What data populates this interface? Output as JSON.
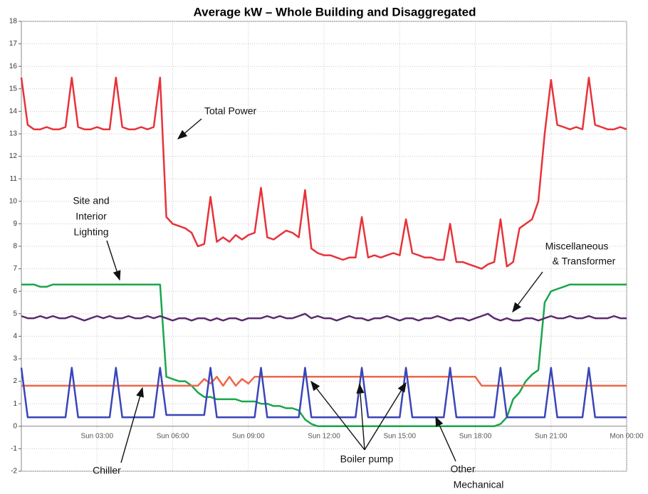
{
  "chart_data": {
    "type": "line",
    "title": "Average kW – Whole Building and Disaggregated",
    "x": [
      0,
      0.25,
      0.5,
      0.75,
      1,
      1.25,
      1.5,
      1.75,
      2,
      2.25,
      2.5,
      2.75,
      3,
      3.25,
      3.5,
      3.75,
      4,
      4.25,
      4.5,
      4.75,
      5,
      5.25,
      5.5,
      5.75,
      6,
      6.25,
      6.5,
      6.75,
      7,
      7.25,
      7.5,
      7.75,
      8,
      8.25,
      8.5,
      8.75,
      9,
      9.25,
      9.5,
      9.75,
      10,
      10.25,
      10.5,
      10.75,
      11,
      11.25,
      11.5,
      11.75,
      12,
      12.25,
      12.5,
      12.75,
      13,
      13.25,
      13.5,
      13.75,
      14,
      14.25,
      14.5,
      14.75,
      15,
      15.25,
      15.5,
      15.75,
      16,
      16.25,
      16.5,
      16.75,
      17,
      17.25,
      17.5,
      17.75,
      18,
      18.25,
      18.5,
      18.75,
      19,
      19.25,
      19.5,
      19.75,
      20,
      20.25,
      20.5,
      20.75,
      21,
      21.25,
      21.5,
      21.75,
      22,
      22.25,
      22.5,
      22.75,
      23,
      23.25,
      23.5,
      23.75,
      24
    ],
    "xlim": [
      0,
      24
    ],
    "xticks": [
      {
        "value": 3,
        "label": "Sun 03:00"
      },
      {
        "value": 6,
        "label": "Sun 06:00"
      },
      {
        "value": 9,
        "label": "Sun 09:00"
      },
      {
        "value": 12,
        "label": "Sun 12:00"
      },
      {
        "value": 15,
        "label": "Sun 15:00"
      },
      {
        "value": 18,
        "label": "Sun 18:00"
      },
      {
        "value": 21,
        "label": "Sun 21:00"
      },
      {
        "value": 24,
        "label": "Mon 00:00"
      }
    ],
    "ylim": [
      -2,
      18
    ],
    "yticks": [
      -2,
      -1,
      0,
      1,
      2,
      3,
      4,
      5,
      6,
      7,
      8,
      9,
      10,
      11,
      12,
      13,
      14,
      15,
      16,
      17,
      18
    ],
    "grid": true,
    "series": [
      {
        "name": "Total Power",
        "color": "#e8323a",
        "values": [
          15.5,
          13.4,
          13.2,
          13.2,
          13.3,
          13.2,
          13.2,
          13.3,
          15.5,
          13.3,
          13.2,
          13.2,
          13.3,
          13.2,
          13.2,
          15.5,
          13.3,
          13.2,
          13.2,
          13.3,
          13.2,
          13.3,
          15.5,
          9.3,
          9.0,
          8.9,
          8.8,
          8.6,
          8.0,
          8.1,
          10.2,
          8.2,
          8.4,
          8.2,
          8.5,
          8.3,
          8.5,
          8.6,
          10.6,
          8.4,
          8.3,
          8.5,
          8.7,
          8.6,
          8.4,
          10.5,
          7.9,
          7.7,
          7.6,
          7.6,
          7.5,
          7.4,
          7.5,
          7.5,
          9.3,
          7.5,
          7.6,
          7.5,
          7.6,
          7.7,
          7.6,
          9.2,
          7.7,
          7.6,
          7.5,
          7.5,
          7.4,
          7.4,
          9.0,
          7.3,
          7.3,
          7.2,
          7.1,
          7.0,
          7.2,
          7.3,
          9.2,
          7.1,
          7.3,
          8.8,
          9.0,
          9.2,
          10.0,
          13.0,
          15.4,
          13.4,
          13.3,
          13.2,
          13.3,
          13.2,
          15.5,
          13.4,
          13.3,
          13.2,
          13.2,
          13.3,
          13.2
        ]
      },
      {
        "name": "Site and Interior Lighting",
        "color": "#1aa64a",
        "values": [
          6.3,
          6.3,
          6.3,
          6.2,
          6.2,
          6.3,
          6.3,
          6.3,
          6.3,
          6.3,
          6.3,
          6.3,
          6.3,
          6.3,
          6.3,
          6.3,
          6.3,
          6.3,
          6.3,
          6.3,
          6.3,
          6.3,
          6.3,
          2.2,
          2.1,
          2.0,
          2.0,
          1.8,
          1.5,
          1.3,
          1.3,
          1.2,
          1.2,
          1.2,
          1.2,
          1.1,
          1.1,
          1.1,
          1.0,
          1.0,
          0.9,
          0.9,
          0.8,
          0.8,
          0.7,
          0.3,
          0.1,
          0,
          0,
          0,
          0,
          0,
          0,
          0,
          0,
          0,
          0,
          0,
          0,
          0,
          0,
          0,
          0,
          0,
          0,
          0,
          0,
          0,
          0,
          0,
          0,
          0,
          0,
          0,
          0,
          0,
          0.1,
          0.4,
          1.2,
          1.5,
          2.0,
          2.3,
          2.5,
          5.5,
          6.0,
          6.1,
          6.2,
          6.3,
          6.3,
          6.3,
          6.3,
          6.3,
          6.3,
          6.3,
          6.3,
          6.3,
          6.3
        ]
      },
      {
        "name": "Miscellaneous & Transformer",
        "color": "#5b2a6e",
        "values": [
          4.9,
          4.8,
          4.8,
          4.9,
          4.8,
          4.9,
          4.8,
          4.8,
          4.9,
          4.8,
          4.7,
          4.8,
          4.9,
          4.8,
          4.9,
          4.8,
          4.8,
          4.9,
          4.8,
          4.8,
          4.9,
          4.8,
          4.9,
          4.8,
          4.7,
          4.8,
          4.8,
          4.7,
          4.8,
          4.8,
          4.7,
          4.8,
          4.7,
          4.8,
          4.8,
          4.7,
          4.8,
          4.8,
          4.8,
          4.9,
          4.8,
          4.9,
          4.8,
          4.8,
          4.9,
          5.0,
          4.8,
          4.9,
          4.8,
          4.8,
          4.7,
          4.8,
          4.9,
          4.8,
          4.8,
          4.7,
          4.8,
          4.8,
          4.9,
          4.8,
          4.7,
          4.8,
          4.8,
          4.7,
          4.8,
          4.8,
          4.9,
          4.8,
          4.7,
          4.8,
          4.8,
          4.7,
          4.8,
          4.9,
          5.0,
          4.8,
          4.7,
          4.8,
          4.7,
          4.7,
          4.8,
          4.8,
          4.7,
          4.8,
          4.9,
          4.8,
          4.8,
          4.9,
          4.8,
          4.8,
          4.9,
          4.8,
          4.8,
          4.8,
          4.9,
          4.8,
          4.8
        ]
      },
      {
        "name": "Chiller",
        "color": "#f0654a",
        "values": [
          1.8,
          1.8,
          1.8,
          1.8,
          1.8,
          1.8,
          1.8,
          1.8,
          1.8,
          1.8,
          1.8,
          1.8,
          1.8,
          1.8,
          1.8,
          1.8,
          1.8,
          1.8,
          1.8,
          1.8,
          1.8,
          1.8,
          1.8,
          1.8,
          1.8,
          1.8,
          1.8,
          1.8,
          1.8,
          2.1,
          1.9,
          2.2,
          1.8,
          2.2,
          1.8,
          2.1,
          1.9,
          2.2,
          2.2,
          2.2,
          2.2,
          2.2,
          2.2,
          2.2,
          2.2,
          2.2,
          2.2,
          2.2,
          2.2,
          2.2,
          2.2,
          2.2,
          2.2,
          2.2,
          2.2,
          2.2,
          2.2,
          2.2,
          2.2,
          2.2,
          2.2,
          2.2,
          2.2,
          2.2,
          2.2,
          2.2,
          2.2,
          2.2,
          2.2,
          2.2,
          2.2,
          2.2,
          2.2,
          1.8,
          1.8,
          1.8,
          1.8,
          1.8,
          1.8,
          1.8,
          1.8,
          1.8,
          1.8,
          1.8,
          1.8,
          1.8,
          1.8,
          1.8,
          1.8,
          1.8,
          1.8,
          1.8,
          1.8,
          1.8,
          1.8,
          1.8,
          1.8
        ]
      },
      {
        "name": "Other Mechanical",
        "color": "#3a45b8",
        "values": [
          2.6,
          0.4,
          0.4,
          0.4,
          0.4,
          0.4,
          0.4,
          0.4,
          2.6,
          0.4,
          0.4,
          0.4,
          0.4,
          0.4,
          0.4,
          2.6,
          0.4,
          0.4,
          0.4,
          0.4,
          0.4,
          0.4,
          2.6,
          0.5,
          0.5,
          0.5,
          0.5,
          0.5,
          0.5,
          0.5,
          2.6,
          0.4,
          0.4,
          0.4,
          0.4,
          0.4,
          0.4,
          0.4,
          2.6,
          0.4,
          0.4,
          0.4,
          0.4,
          0.4,
          0.4,
          2.6,
          0.4,
          0.4,
          0.4,
          0.4,
          0.4,
          0.4,
          0.4,
          0.4,
          2.6,
          0.4,
          0.4,
          0.4,
          0.4,
          0.4,
          0.4,
          2.6,
          0.4,
          0.4,
          0.4,
          0.4,
          0.4,
          0.4,
          2.6,
          0.4,
          0.4,
          0.4,
          0.4,
          0.4,
          0.4,
          0.4,
          2.6,
          0.4,
          0.4,
          0.4,
          0.4,
          0.4,
          0.4,
          0.4,
          2.6,
          0.4,
          0.4,
          0.4,
          0.4,
          0.4,
          2.6,
          0.4,
          0.4,
          0.4,
          0.4,
          0.4,
          0.4
        ]
      }
    ],
    "annotations": [
      {
        "lines": [
          "Total Power"
        ]
      },
      {
        "lines": [
          "Site and",
          "Interior",
          "Lighting"
        ]
      },
      {
        "lines": [
          "Miscellaneous",
          "& Transformer"
        ]
      },
      {
        "lines": [
          "Chiller"
        ]
      },
      {
        "lines": [
          "Boiler pump"
        ]
      },
      {
        "lines": [
          "Other",
          "Mechanical"
        ]
      }
    ]
  }
}
